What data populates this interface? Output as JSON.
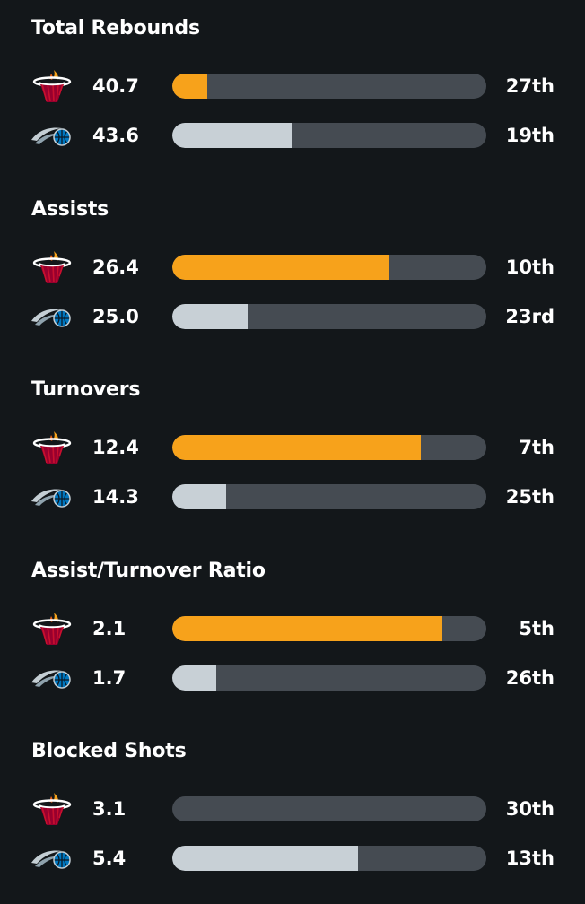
{
  "colors": {
    "background": "#13171a",
    "bar_track": "#454b52",
    "heat_fill": "#f7a21b",
    "magic_fill": "#c8d0d6"
  },
  "teams": {
    "heat": {
      "icon": "miami-heat-logo-icon"
    },
    "magic": {
      "icon": "orlando-magic-logo-icon"
    }
  },
  "sections": [
    {
      "title": "Total Rebounds",
      "rows": [
        {
          "team": "heat",
          "value": "40.7",
          "rank": "27th",
          "fill_pct": 11
        },
        {
          "team": "magic",
          "value": "43.6",
          "rank": "19th",
          "fill_pct": 38
        }
      ]
    },
    {
      "title": "Assists",
      "rows": [
        {
          "team": "heat",
          "value": "26.4",
          "rank": "10th",
          "fill_pct": 69
        },
        {
          "team": "magic",
          "value": "25.0",
          "rank": "23rd",
          "fill_pct": 24
        }
      ]
    },
    {
      "title": "Turnovers",
      "rows": [
        {
          "team": "heat",
          "value": "12.4",
          "rank": "7th",
          "fill_pct": 79
        },
        {
          "team": "magic",
          "value": "14.3",
          "rank": "25th",
          "fill_pct": 17
        }
      ]
    },
    {
      "title": "Assist/Turnover Ratio",
      "rows": [
        {
          "team": "heat",
          "value": "2.1",
          "rank": "5th",
          "fill_pct": 86
        },
        {
          "team": "magic",
          "value": "1.7",
          "rank": "26th",
          "fill_pct": 14
        }
      ]
    },
    {
      "title": "Blocked Shots",
      "rows": [
        {
          "team": "heat",
          "value": "3.1",
          "rank": "30th",
          "fill_pct": 0
        },
        {
          "team": "magic",
          "value": "5.4",
          "rank": "13th",
          "fill_pct": 59
        }
      ]
    }
  ]
}
